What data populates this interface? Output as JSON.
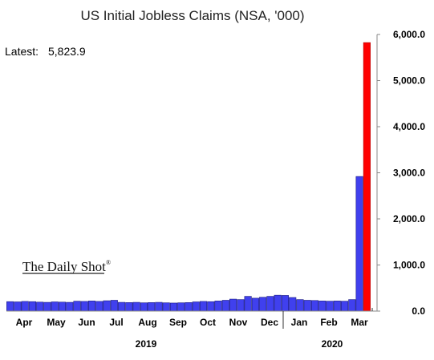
{
  "chart_data": {
    "type": "bar",
    "title": "US Initial Jobless Claims (NSA, '000)",
    "annotation_label": "Latest:",
    "annotation_value": "5,823.9",
    "ylim": [
      0,
      6000
    ],
    "yticks": [
      "0.0",
      "1,000.0",
      "2,000.0",
      "3,000.0",
      "4,000.0",
      "5,000.0",
      "6,000.0"
    ],
    "month_labels": [
      "Apr",
      "May",
      "Jun",
      "Jul",
      "Aug",
      "Sep",
      "Oct",
      "Nov",
      "Dec",
      "Jan",
      "Feb",
      "Mar"
    ],
    "year_labels": [
      "2019",
      "2020"
    ],
    "values": [
      205,
      200,
      210,
      205,
      195,
      190,
      200,
      195,
      190,
      215,
      210,
      220,
      210,
      225,
      235,
      190,
      185,
      190,
      180,
      185,
      190,
      180,
      175,
      180,
      185,
      200,
      210,
      205,
      220,
      235,
      260,
      250,
      320,
      280,
      300,
      320,
      345,
      340,
      295,
      250,
      235,
      230,
      220,
      215,
      220,
      215,
      250,
      2920,
      5824
    ],
    "colors": {
      "bar": "#4040ee",
      "latest_bar": "#ff0000"
    }
  },
  "watermark": "The Daily Shot"
}
